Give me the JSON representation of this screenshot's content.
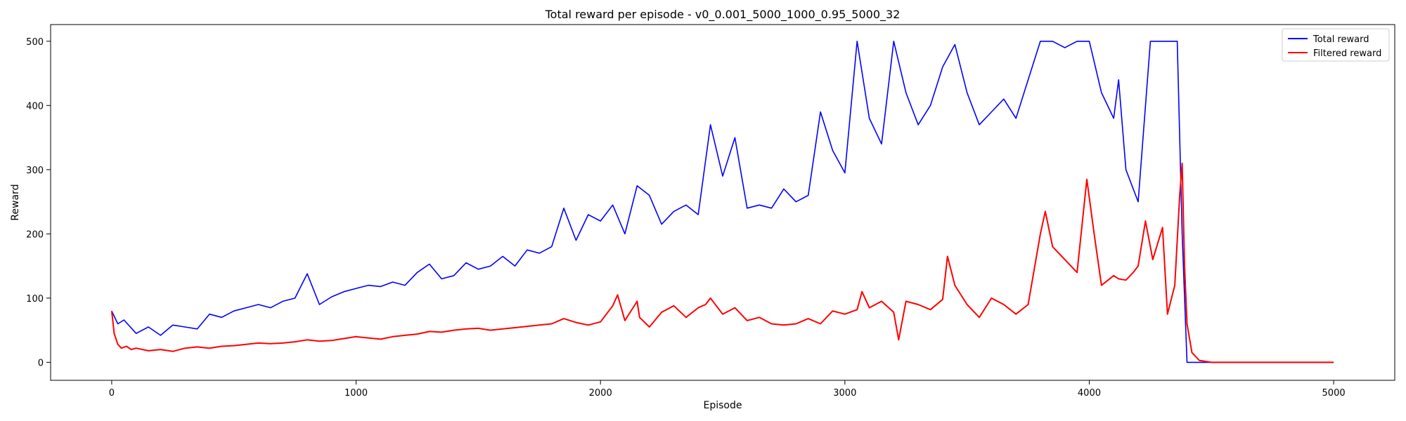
{
  "chart_data": {
    "type": "line",
    "title": "Total reward per episode - v0_0.001_5000_1000_0.95_5000_32",
    "xlabel": "Episode",
    "ylabel": "Reward",
    "xlim": [
      -250,
      5250
    ],
    "ylim": [
      -28,
      526
    ],
    "xticks": [
      0,
      1000,
      2000,
      3000,
      4000,
      5000
    ],
    "yticks": [
      0,
      100,
      200,
      300,
      400,
      500
    ],
    "grid": false,
    "legend_position": "top-right",
    "series": [
      {
        "name": "Total reward",
        "color": "#0000ff",
        "x": [
          0,
          25,
          50,
          100,
          150,
          200,
          250,
          300,
          350,
          400,
          450,
          500,
          550,
          600,
          650,
          700,
          750,
          800,
          850,
          900,
          950,
          1000,
          1050,
          1100,
          1150,
          1200,
          1250,
          1300,
          1350,
          1400,
          1450,
          1500,
          1550,
          1600,
          1650,
          1700,
          1750,
          1800,
          1850,
          1900,
          1950,
          2000,
          2050,
          2100,
          2150,
          2200,
          2250,
          2300,
          2350,
          2400,
          2450,
          2500,
          2550,
          2600,
          2650,
          2700,
          2750,
          2800,
          2850,
          2900,
          2950,
          3000,
          3050,
          3100,
          3150,
          3200,
          3250,
          3300,
          3350,
          3400,
          3450,
          3500,
          3550,
          3600,
          3650,
          3700,
          3750,
          3800,
          3850,
          3900,
          3950,
          4000,
          4050,
          4100,
          4120,
          4150,
          4200,
          4250,
          4300,
          4340,
          4360,
          4380,
          4400,
          4500,
          5000
        ],
        "values": [
          80,
          60,
          66,
          45,
          55,
          42,
          58,
          55,
          52,
          75,
          70,
          80,
          85,
          90,
          85,
          95,
          100,
          138,
          90,
          102,
          110,
          115,
          120,
          118,
          125,
          120,
          140,
          153,
          130,
          135,
          155,
          145,
          150,
          165,
          150,
          175,
          170,
          180,
          240,
          190,
          230,
          220,
          245,
          200,
          275,
          260,
          215,
          235,
          245,
          230,
          370,
          290,
          350,
          240,
          245,
          240,
          270,
          250,
          260,
          390,
          330,
          295,
          500,
          380,
          340,
          500,
          420,
          370,
          400,
          460,
          495,
          420,
          370,
          390,
          410,
          380,
          440,
          500,
          500,
          490,
          500,
          500,
          420,
          380,
          440,
          300,
          250,
          500,
          500,
          500,
          500,
          200,
          0,
          0,
          0
        ]
      },
      {
        "name": "Filtered reward",
        "color": "#ff0000",
        "x": [
          0,
          10,
          25,
          40,
          60,
          80,
          100,
          150,
          200,
          250,
          300,
          350,
          400,
          450,
          500,
          550,
          600,
          650,
          700,
          750,
          800,
          850,
          900,
          950,
          1000,
          1050,
          1100,
          1150,
          1200,
          1250,
          1300,
          1350,
          1400,
          1450,
          1500,
          1550,
          1600,
          1650,
          1700,
          1750,
          1800,
          1850,
          1900,
          1950,
          2000,
          2050,
          2070,
          2100,
          2150,
          2160,
          2200,
          2250,
          2300,
          2350,
          2400,
          2430,
          2450,
          2500,
          2550,
          2600,
          2650,
          2700,
          2750,
          2800,
          2850,
          2900,
          2950,
          3000,
          3050,
          3070,
          3100,
          3150,
          3200,
          3220,
          3250,
          3300,
          3350,
          3400,
          3420,
          3450,
          3500,
          3550,
          3600,
          3650,
          3700,
          3750,
          3800,
          3820,
          3850,
          3900,
          3950,
          3990,
          4020,
          4050,
          4100,
          4120,
          4150,
          4180,
          4200,
          4230,
          4260,
          4300,
          4320,
          4350,
          4370,
          4380,
          4390,
          4400,
          4420,
          4450,
          4500,
          4600,
          4800,
          5000
        ],
        "values": [
          80,
          45,
          28,
          22,
          25,
          20,
          22,
          18,
          20,
          17,
          22,
          24,
          22,
          25,
          26,
          28,
          30,
          29,
          30,
          32,
          35,
          33,
          34,
          37,
          40,
          38,
          36,
          40,
          42,
          44,
          48,
          47,
          50,
          52,
          53,
          50,
          52,
          54,
          56,
          58,
          60,
          68,
          62,
          58,
          63,
          88,
          105,
          65,
          95,
          70,
          55,
          78,
          88,
          70,
          85,
          90,
          100,
          75,
          85,
          65,
          70,
          60,
          58,
          60,
          68,
          60,
          80,
          75,
          82,
          110,
          85,
          95,
          78,
          35,
          95,
          90,
          82,
          98,
          165,
          120,
          90,
          70,
          100,
          90,
          75,
          90,
          200,
          235,
          180,
          160,
          140,
          285,
          200,
          120,
          135,
          130,
          128,
          140,
          150,
          220,
          160,
          210,
          75,
          120,
          260,
          310,
          150,
          60,
          15,
          3,
          0,
          0,
          0,
          0
        ]
      }
    ]
  }
}
